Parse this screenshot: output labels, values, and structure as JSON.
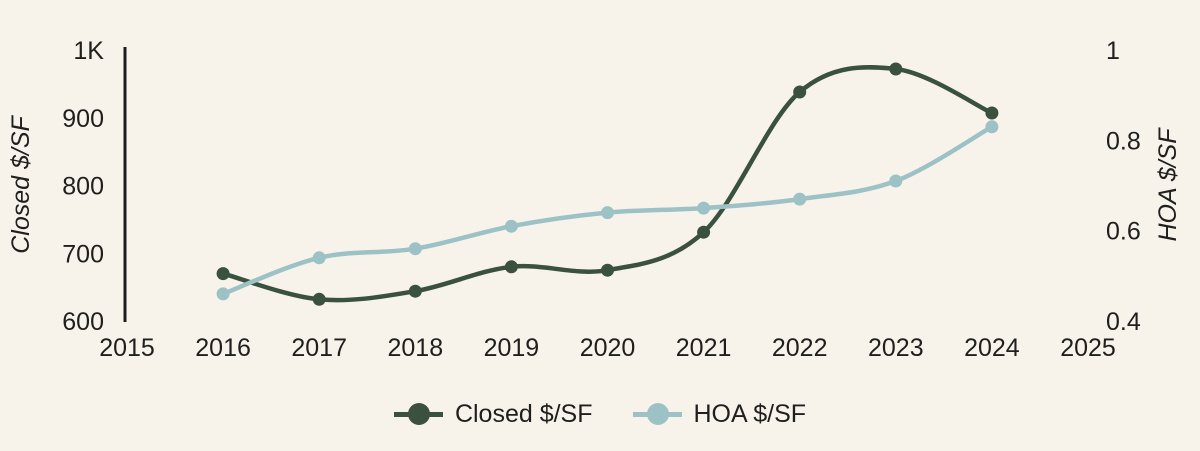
{
  "chart_data": {
    "type": "line",
    "title": "",
    "x": [
      2016,
      2017,
      2018,
      2019,
      2020,
      2021,
      2022,
      2023,
      2024
    ],
    "series": [
      {
        "name": "Closed $/SF",
        "axis": "left_axis",
        "color": "#3a5140",
        "values": [
          670,
          632,
          644,
          680,
          675,
          731,
          938,
          972,
          907
        ]
      },
      {
        "name": "HOA $/SF",
        "axis": "right_axis",
        "color": "#9dc2c6",
        "values": [
          0.46,
          0.54,
          0.56,
          0.61,
          0.64,
          0.65,
          0.67,
          0.71,
          0.83
        ]
      }
    ],
    "x_axis": {
      "range": [
        2015,
        2025
      ],
      "ticks": [
        "2015",
        "2016",
        "2017",
        "2018",
        "2019",
        "2020",
        "2021",
        "2022",
        "2023",
        "2024",
        "2025"
      ],
      "tick_values": [
        2015,
        2016,
        2017,
        2018,
        2019,
        2020,
        2021,
        2022,
        2023,
        2024,
        2025
      ]
    },
    "left_axis": {
      "label": "Closed $/SF",
      "range": [
        600,
        1000
      ],
      "ticks": [
        {
          "v": 1000,
          "label": "1K"
        },
        {
          "v": 900,
          "label": "900"
        },
        {
          "v": 800,
          "label": "800"
        },
        {
          "v": 700,
          "label": "700"
        },
        {
          "v": 600,
          "label": "600"
        }
      ]
    },
    "right_axis": {
      "label": "HOA $/SF",
      "range": [
        0.4,
        1.0
      ],
      "ticks": [
        {
          "v": 1.0,
          "label": "1"
        },
        {
          "v": 0.8,
          "label": "0.8"
        },
        {
          "v": 0.6,
          "label": "0.6"
        },
        {
          "v": 0.4,
          "label": "0.4"
        }
      ]
    },
    "legend": [
      {
        "label": "Closed $/SF",
        "color": "#3a5140"
      },
      {
        "label": "HOA $/SF",
        "color": "#9dc2c6"
      }
    ],
    "legend_position": "bottom-center",
    "grid": false,
    "colors": {
      "background": "#f7f3ea",
      "text": "#1f1f1f",
      "axis_line": "#1c1c1c"
    }
  }
}
